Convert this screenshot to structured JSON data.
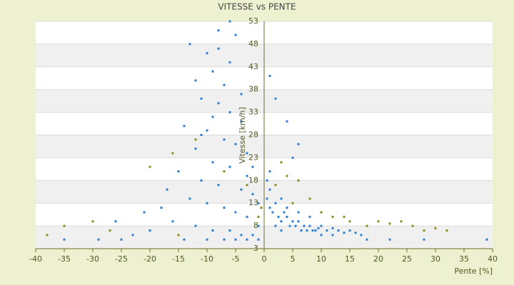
{
  "chart_data": {
    "type": "scatter",
    "title": "VITESSE vs PENTE",
    "x_label": "Pente [%]",
    "y_label": "Vitesse [km/h]",
    "xlim": [
      -40,
      40
    ],
    "ylim": [
      3,
      53
    ],
    "xticks": [
      -40,
      -35,
      -30,
      -25,
      -20,
      -15,
      -10,
      -5,
      0,
      5,
      10,
      15,
      20,
      25,
      30,
      35,
      40
    ],
    "yticks": [
      3,
      8,
      13,
      18,
      23,
      28,
      33,
      38,
      43,
      48,
      53
    ],
    "series": [
      {
        "color": "#2f7fd0",
        "x": [
          -13,
          -10,
          -8,
          -6,
          -5,
          -12,
          -9,
          -7,
          -11,
          -8,
          -6,
          -4,
          -14,
          -10,
          -7,
          -5,
          -3,
          -12,
          -9,
          -6,
          -15,
          -11,
          -8,
          -4,
          -2,
          -13,
          -10,
          -7,
          -5,
          -3,
          -18,
          -16,
          -12,
          -9,
          -6,
          -4,
          -2,
          -1,
          -20,
          -23,
          -25,
          -14,
          -10,
          -7,
          -5,
          -3,
          -1,
          -21,
          -17,
          -26,
          -29,
          -35,
          -9,
          -11,
          -3,
          -2,
          -1,
          -6,
          -8,
          -4,
          0.5,
          1,
          1.5,
          2,
          2.5,
          3,
          3.5,
          4,
          4.5,
          5,
          5.5,
          6,
          6.5,
          7,
          7.5,
          8,
          8.5,
          9,
          9.5,
          10,
          11,
          12,
          13,
          14,
          15,
          16,
          17,
          2,
          3,
          4,
          1,
          0.5,
          1,
          5,
          6,
          4,
          2,
          1,
          10,
          12,
          18,
          22,
          28,
          39,
          8,
          6,
          3
        ],
        "y": [
          48,
          46,
          51,
          53,
          50,
          40,
          42,
          39,
          36,
          35,
          33,
          31,
          30,
          29,
          27,
          26,
          24,
          25,
          22,
          21,
          20,
          18,
          17,
          16,
          15,
          14,
          13,
          12,
          11,
          10,
          12,
          9,
          8,
          7,
          7,
          6,
          6,
          8,
          7,
          6,
          5,
          5,
          5,
          5,
          5,
          5,
          5,
          11,
          16,
          9,
          5,
          5,
          32,
          28,
          19,
          21,
          13,
          44,
          47,
          37,
          14,
          12,
          11,
          13,
          10,
          9,
          11,
          10,
          8,
          9,
          8,
          9,
          7,
          8,
          7,
          8,
          7,
          7,
          7.5,
          8,
          7,
          7.5,
          7,
          6.5,
          7,
          6.5,
          6,
          8,
          7,
          12,
          16,
          18,
          20,
          23,
          26,
          31,
          36,
          41,
          6,
          6,
          5,
          5,
          5,
          5,
          10,
          11,
          14
        ]
      },
      {
        "color": "#8c8c1e",
        "x": [
          -38,
          -35,
          -30,
          -20,
          -16,
          -12,
          -7,
          -3,
          -1,
          2,
          4,
          6,
          8,
          10,
          12,
          15,
          18,
          20,
          22,
          24,
          26,
          28,
          30,
          32,
          -27,
          -15,
          5,
          14,
          -0.5,
          3
        ],
        "y": [
          6,
          8,
          9,
          21,
          24,
          27,
          20,
          17,
          10,
          17,
          19,
          18,
          14,
          11,
          10,
          9,
          8,
          9,
          8.5,
          9,
          8,
          7,
          7.5,
          7,
          7,
          6,
          13,
          10,
          12,
          22
        ]
      }
    ]
  }
}
